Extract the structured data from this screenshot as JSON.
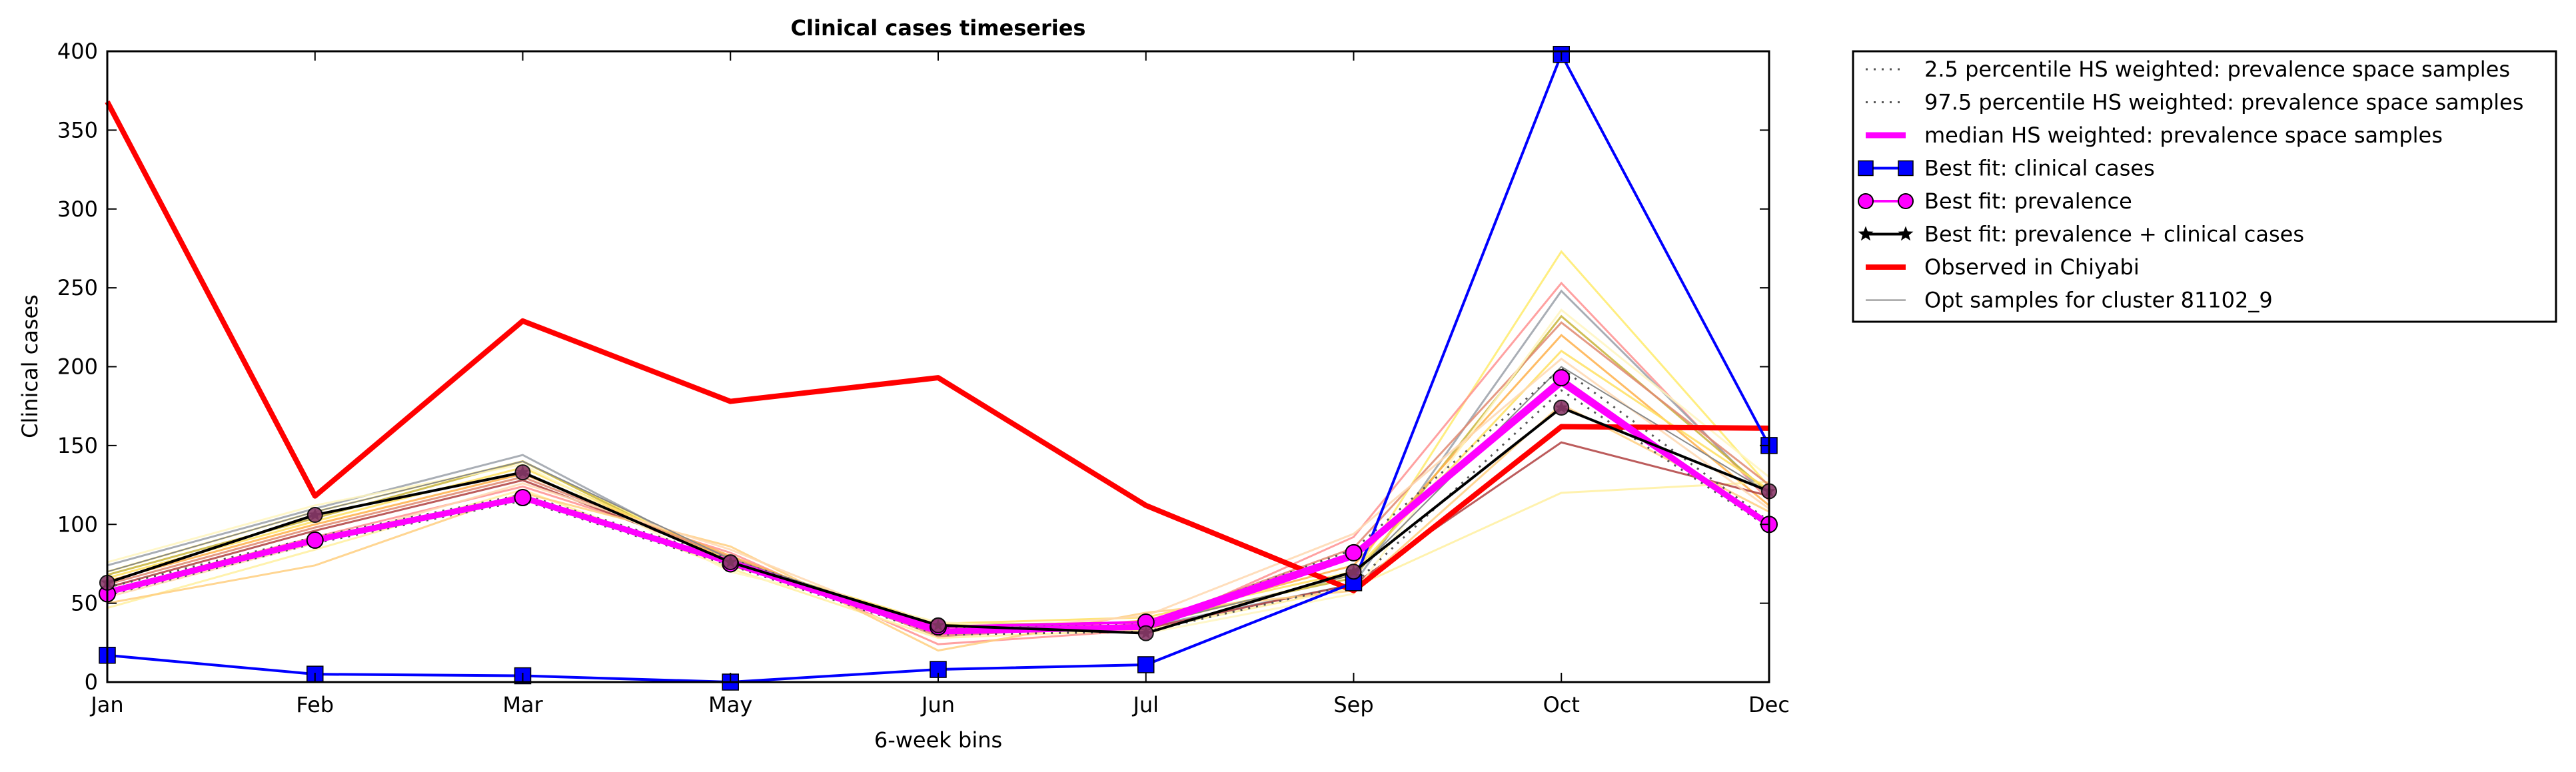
{
  "chart_data": {
    "type": "line",
    "title": "Clinical cases timeseries",
    "xlabel": "6-week bins",
    "ylabel": "Clinical cases",
    "categories": [
      "Jan",
      "Feb",
      "Mar",
      "May",
      "Jun",
      "Jul",
      "Sep",
      "Oct",
      "Dec"
    ],
    "ylim": [
      0,
      400
    ],
    "yticks": [
      0,
      50,
      100,
      150,
      200,
      250,
      300,
      350,
      400
    ],
    "grid": false,
    "legend_position": "outside right, top",
    "series": [
      {
        "name": "2.5 percentile HS weighted: prevalence space samples",
        "style": "dotted",
        "color": "#555555",
        "values": [
          55,
          88,
          115,
          74,
          30,
          32,
          62,
          185,
          98
        ]
      },
      {
        "name": "97.5 percentile HS weighted: prevalence space samples",
        "style": "dotted",
        "color": "#555555",
        "values": [
          60,
          92,
          119,
          78,
          34,
          37,
          84,
          199,
          102
        ]
      },
      {
        "name": "median HS weighted: prevalence space samples",
        "style": "solid",
        "color": "#ff00ff",
        "values": [
          57,
          90,
          117,
          76,
          32,
          35,
          80,
          190,
          100
        ]
      },
      {
        "name": "Best fit: clinical cases",
        "style": "solid",
        "marker": "square",
        "color": "#0000ff",
        "values": [
          17,
          5,
          4,
          0,
          8,
          11,
          63,
          398,
          150
        ]
      },
      {
        "name": "Best fit: prevalence",
        "style": "solid",
        "marker": "circle",
        "color": "#ff00ff",
        "values": [
          56,
          90,
          117,
          75,
          35,
          38,
          82,
          193,
          100
        ]
      },
      {
        "name": "Best fit: prevalence + clinical cases",
        "style": "solid",
        "marker": "star",
        "color": "#000000",
        "values": [
          63,
          106,
          133,
          76,
          36,
          31,
          70,
          174,
          121
        ]
      },
      {
        "name": "Observed in Chiyabi",
        "style": "solid",
        "color": "#ff0000",
        "values": [
          368,
          118,
          229,
          178,
          193,
          112,
          58,
          162,
          161
        ]
      },
      {
        "name": "Opt samples for cluster 81102_9",
        "style": "thin",
        "color": "#888888",
        "values": [
          70,
          108,
          140,
          78,
          35,
          36,
          68,
          200,
          120
        ]
      }
    ],
    "opt_sample_lines": [
      {
        "color": "#ffeb6b",
        "values": [
          70,
          108,
          140,
          76,
          34,
          36,
          68,
          273,
          124
        ]
      },
      {
        "color": "#ff9090",
        "values": [
          58,
          92,
          124,
          82,
          24,
          33,
          92,
          253,
          115
        ]
      },
      {
        "color": "#9aa0a8",
        "values": [
          74,
          110,
          144,
          75,
          33,
          35,
          62,
          248,
          117
        ]
      },
      {
        "color": "#c8b43a",
        "values": [
          68,
          104,
          140,
          74,
          36,
          38,
          66,
          232,
          120
        ]
      },
      {
        "color": "#ffb04a",
        "values": [
          64,
          100,
          132,
          80,
          30,
          39,
          74,
          220,
          112
        ]
      },
      {
        "color": "#fff0a0",
        "values": [
          47,
          84,
          122,
          72,
          28,
          33,
          60,
          120,
          127
        ]
      },
      {
        "color": "#b04040",
        "values": [
          60,
          96,
          128,
          78,
          33,
          34,
          62,
          152,
          118
        ]
      },
      {
        "color": "#ffe060",
        "values": [
          66,
          102,
          136,
          77,
          37,
          41,
          70,
          210,
          122
        ]
      },
      {
        "color": "#ffcf80",
        "values": [
          50,
          74,
          120,
          86,
          20,
          44,
          58,
          176,
          108
        ]
      },
      {
        "color": "#e08870",
        "values": [
          62,
          98,
          130,
          79,
          29,
          37,
          85,
          228,
          125
        ]
      },
      {
        "color": "#fff6c0",
        "values": [
          76,
          112,
          138,
          70,
          38,
          31,
          56,
          236,
          130
        ]
      },
      {
        "color": "#ffd8b0",
        "values": [
          54,
          88,
          126,
          84,
          31,
          42,
          94,
          205,
          110
        ]
      }
    ]
  }
}
